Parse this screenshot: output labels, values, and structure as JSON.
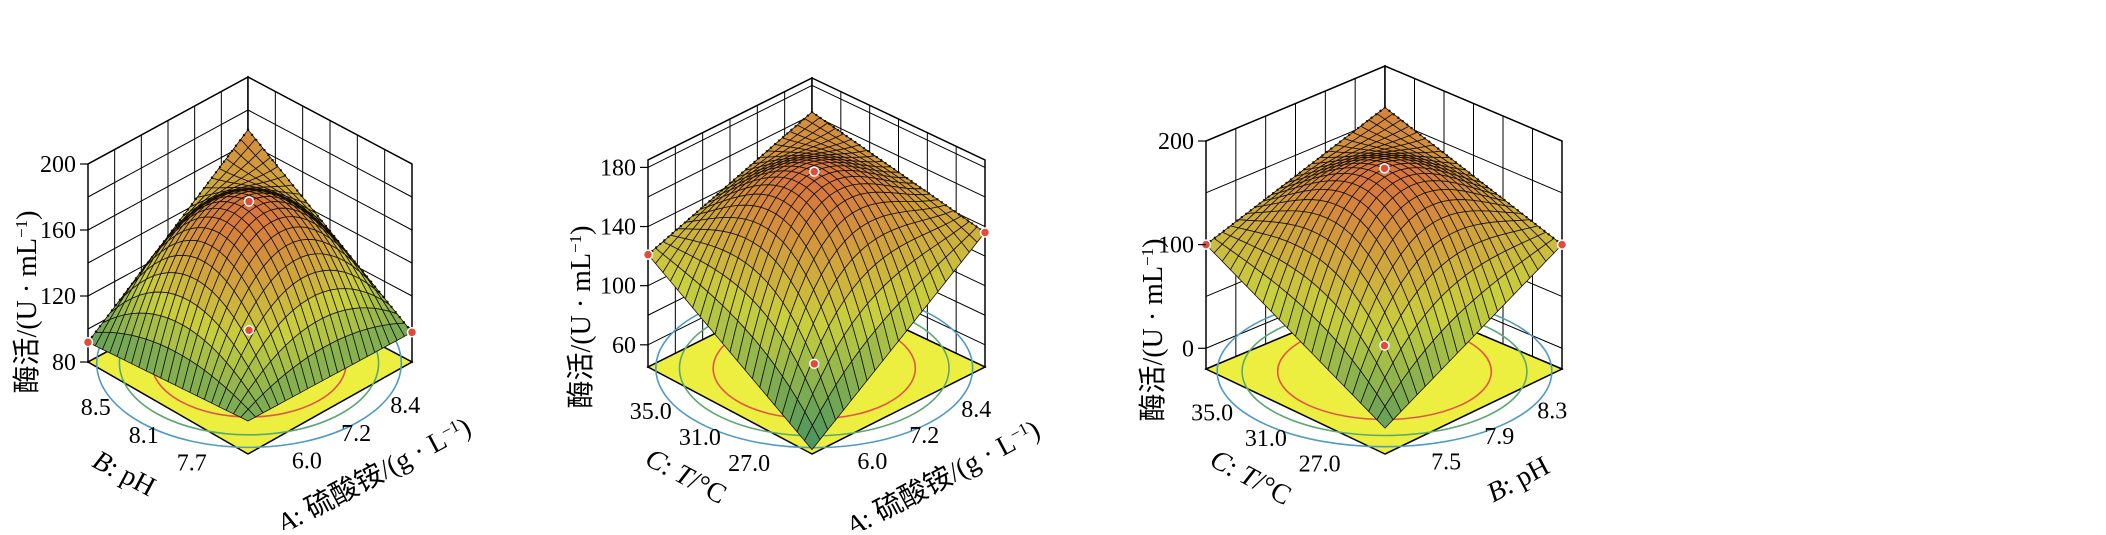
{
  "colors": {
    "contour_floor": "#ecef3f",
    "floor_ellipse_inner": "#e2564a",
    "floor_ellipse_mid": "#5aa872",
    "floor_ellipse_outer": "#4f9bc4",
    "surface_dark": "#151006",
    "surface_high": "#d8743c",
    "surface_mid": "#c9cf3d",
    "surface_low": "#3f8f63",
    "design_point": "#e24a3b",
    "grid": "#000000"
  },
  "chart_data": [
    {
      "type": "surface",
      "title": "",
      "zlabel": "酶活/(U · mL⁻¹)",
      "zlabel_parts": {
        "main": "酶活/(U · mL",
        "sup": "−1",
        "close": ")"
      },
      "zticks": [
        "80",
        "120",
        "160",
        "200"
      ],
      "zlim": [
        80,
        200
      ],
      "xlabel": "A: 硫酸铵/(g · L⁻¹)",
      "xlabel_parts": {
        "prefix": "A",
        "main": ": 硫酸铵/(g · L",
        "sup": "−1",
        "close": ")"
      },
      "xticks": [
        "6.0",
        "7.2",
        "8.4"
      ],
      "ylabel": "B: pH",
      "ylabel_parts": {
        "prefix": "B",
        "main": ": pH"
      },
      "yticks": [
        "7.7",
        "8.1",
        "8.5"
      ],
      "corner_values": {
        "front": 100,
        "left": 92,
        "right": 98,
        "back": 168
      },
      "peak_value": 178,
      "design_points": [
        178,
        92,
        98,
        100
      ]
    },
    {
      "type": "surface",
      "title": "",
      "zlabel": "酶活/(U · mL⁻¹)",
      "zlabel_parts": {
        "main": "酶活/(U · mL",
        "sup": "−1",
        "close": ")"
      },
      "zticks": [
        "60",
        "100",
        "140",
        "180"
      ],
      "zlim": [
        45,
        185
      ],
      "xlabel": "A: 硫酸铵/(g · L⁻¹)",
      "xlabel_parts": {
        "prefix": "A",
        "main": ": 硫酸铵/(g · L",
        "sup": "−1",
        "close": ")"
      },
      "xticks": [
        "6.0",
        "7.2",
        "8.4"
      ],
      "ylabel": "C: T/°C",
      "ylabel_parts": {
        "prefix": "C",
        "main": ": ",
        "italic": "T",
        "rest": "/°C"
      },
      "yticks": [
        "27.0",
        "31.0",
        "35.0"
      ],
      "corner_values": {
        "front": 48,
        "left": 121,
        "right": 136,
        "back": 162
      },
      "peak_value": 178,
      "design_points": [
        178,
        121,
        136,
        48
      ]
    },
    {
      "type": "surface",
      "title": "",
      "zlabel": "酶活/(U · mL⁻¹)",
      "zlabel_parts": {
        "main": "酶活/(U · mL",
        "sup": "−1",
        "close": ")"
      },
      "zticks": [
        "0",
        "100",
        "200"
      ],
      "zlim": [
        -20,
        200
      ],
      "xlabel": "B: pH",
      "xlabel_parts": {
        "prefix": "B",
        "main": ": pH"
      },
      "xticks": [
        "7.5",
        "7.9",
        "8.3"
      ],
      "ylabel": "C: T/°C",
      "ylabel_parts": {
        "prefix": "C",
        "main": ": ",
        "italic": "T",
        "rest": "/°C"
      },
      "yticks": [
        "27.0",
        "31.0",
        "35.0"
      ],
      "corner_values": {
        "front": 5,
        "left": 100,
        "right": 100,
        "back": 160
      },
      "peak_value": 176,
      "design_points": [
        176,
        100,
        100,
        5
      ]
    }
  ]
}
